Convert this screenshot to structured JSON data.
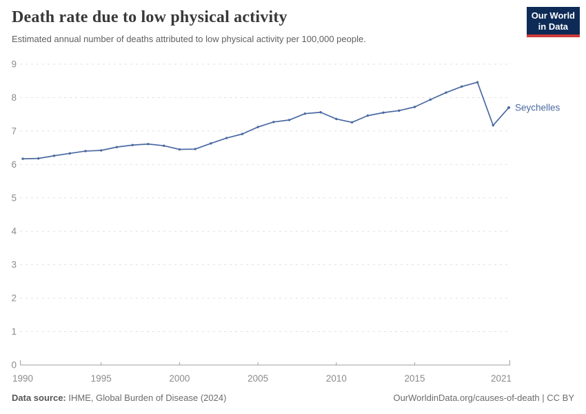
{
  "header": {
    "title": "Death rate due to low physical activity",
    "subtitle": "Estimated annual number of deaths attributed to low physical activity per 100,000 people.",
    "logo": {
      "line1": "Our World",
      "line2": "in Data"
    }
  },
  "chart_data": {
    "type": "line",
    "title": "Death rate due to low physical activity",
    "ylabel": "Deaths per 100,000 people",
    "x": [
      1990,
      1991,
      1992,
      1993,
      1994,
      1995,
      1996,
      1997,
      1998,
      1999,
      2000,
      2001,
      2002,
      2003,
      2004,
      2005,
      2006,
      2007,
      2008,
      2009,
      2010,
      2011,
      2012,
      2013,
      2014,
      2015,
      2016,
      2017,
      2018,
      2019,
      2020,
      2021
    ],
    "series": [
      {
        "name": "Seychelles",
        "values": [
          6.17,
          6.18,
          6.26,
          6.33,
          6.4,
          6.42,
          6.52,
          6.58,
          6.61,
          6.56,
          6.45,
          6.46,
          6.63,
          6.79,
          6.91,
          7.12,
          7.27,
          7.33,
          7.52,
          7.56,
          7.36,
          7.26,
          7.46,
          7.55,
          7.61,
          7.72,
          7.94,
          8.15,
          8.33,
          8.46,
          7.17,
          7.7
        ]
      }
    ],
    "end_label": "Seychelles",
    "x_ticks": [
      1990,
      1995,
      2000,
      2005,
      2010,
      2015,
      2021
    ],
    "y_ticks": [
      0,
      1,
      2,
      3,
      4,
      5,
      6,
      7,
      8,
      9
    ],
    "xlim": [
      1990,
      2021
    ],
    "ylim": [
      0,
      9
    ],
    "grid": "horizontal-dashed",
    "legend_position": "line-end"
  },
  "footer": {
    "source_label": "Data source:",
    "source_text": "IHME, Global Burden of Disease (2024)",
    "attribution": "OurWorldinData.org/causes-of-death | CC BY"
  },
  "colors": {
    "line": "#4a69a1",
    "grid": "#e0e0e0",
    "axis": "#9f9f9f",
    "tick_text": "#8a8a8a",
    "logo_bg": "#0d2b56",
    "logo_accent": "#cf3a3a"
  }
}
